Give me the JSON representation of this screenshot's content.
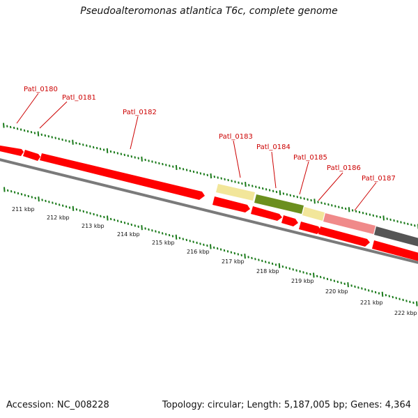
{
  "title": "Pseudoalteromonas atlantica T6c, complete genome",
  "footer": {
    "accession": "Accession: NC_008228",
    "summary": "Topology: circular; Length: 5,187,005 bp; Genes: 4,364"
  },
  "colors": {
    "cds": "#ff0000",
    "pale": "#f2e69a",
    "olive": "#6b8f1e",
    "pink": "#f08a8a",
    "dark": "#555555",
    "backbone": "#7a7a7a",
    "tick": "#1a7a1a",
    "label": "#cc0000"
  },
  "gene_labels": [
    "Patl_0180",
    "Patl_0181",
    "Patl_0182",
    "Patl_0183",
    "Patl_0184",
    "Patl_0185",
    "Patl_0186",
    "Patl_0187"
  ],
  "scale_labels": [
    "211 kbp",
    "212 kbp",
    "213 kbp",
    "214 kbp",
    "215 kbp",
    "216 kbp",
    "217 kbp",
    "218 kbp",
    "219 kbp",
    "220 kbp",
    "221 kbp",
    "222 kbp"
  ]
}
